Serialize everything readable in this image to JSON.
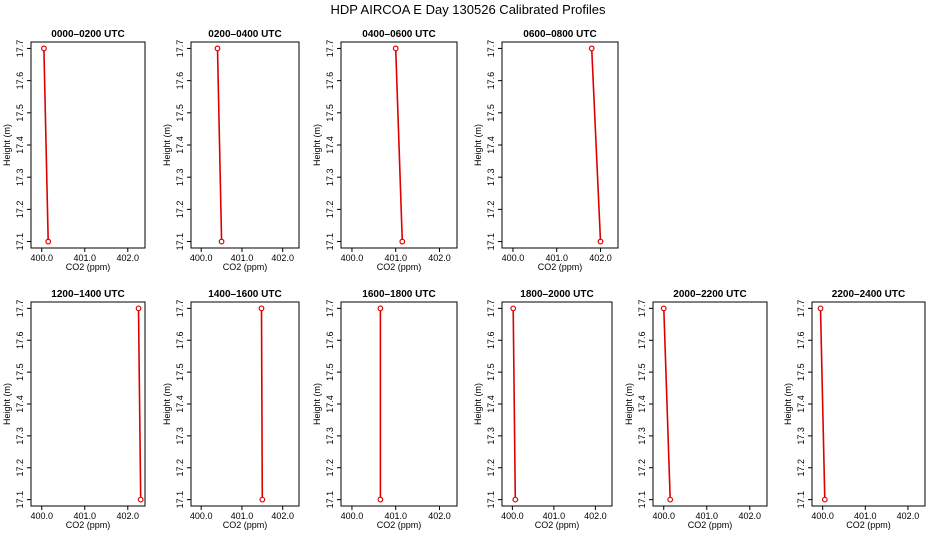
{
  "title": "HDP AIRCOA E  Day 130526  Calibrated Profiles",
  "xlabel": "CO2 (ppm)",
  "ylabel": "Height (m)",
  "chart_data": {
    "type": "line",
    "title": "HDP AIRCOA E  Day 130526  Calibrated Profiles",
    "xlabel": "CO2 (ppm)",
    "ylabel": "Height (m)",
    "xlim": [
      399.75,
      402.4
    ],
    "ylim": [
      17.08,
      17.72
    ],
    "xticks": [
      "400.0",
      "401.0",
      "402.0"
    ],
    "xtick_values": [
      400.0,
      401.0,
      402.0
    ],
    "yticks": [
      "17.1",
      "17.2",
      "17.3",
      "17.4",
      "17.5",
      "17.6",
      "17.7"
    ],
    "ytick_values": [
      17.1,
      17.2,
      17.3,
      17.4,
      17.5,
      17.6,
      17.7
    ],
    "color": "#dd0000",
    "grid": false,
    "panels": [
      {
        "name": "0000–0200 UTC",
        "x": [
          400.15,
          400.05
        ],
        "y": [
          17.1,
          17.7
        ]
      },
      {
        "name": "0200–0400 UTC",
        "x": [
          400.5,
          400.4
        ],
        "y": [
          17.1,
          17.7
        ]
      },
      {
        "name": "0400–0600 UTC",
        "x": [
          401.15,
          401.0
        ],
        "y": [
          17.1,
          17.7
        ]
      },
      {
        "name": "0600–0800 UTC",
        "x": [
          402.0,
          401.8
        ],
        "y": [
          17.1,
          17.7
        ]
      },
      {
        "name": "1200–1400 UTC",
        "x": [
          402.3,
          402.25
        ],
        "y": [
          17.1,
          17.7
        ]
      },
      {
        "name": "1400–1600 UTC",
        "x": [
          401.5,
          401.48
        ],
        "y": [
          17.1,
          17.7
        ]
      },
      {
        "name": "1600–1800 UTC",
        "x": [
          400.65,
          400.65
        ],
        "y": [
          17.1,
          17.7
        ]
      },
      {
        "name": "1800–2000 UTC",
        "x": [
          400.07,
          400.02
        ],
        "y": [
          17.1,
          17.7
        ]
      },
      {
        "name": "2000–2200 UTC",
        "x": [
          400.15,
          400.0
        ],
        "y": [
          17.1,
          17.7
        ]
      },
      {
        "name": "2200–2400 UTC",
        "x": [
          400.05,
          399.95
        ],
        "y": [
          17.1,
          17.7
        ]
      }
    ]
  }
}
